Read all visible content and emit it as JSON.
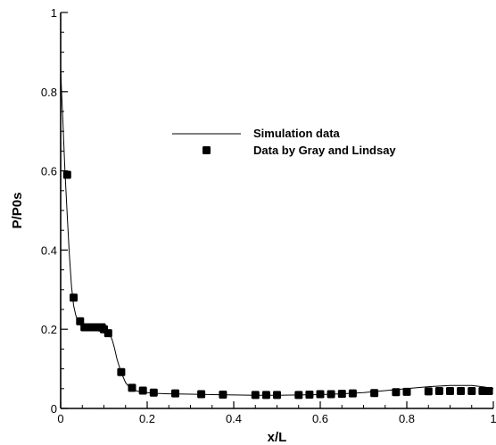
{
  "chart_data": {
    "type": "line",
    "xlabel": "x/L",
    "ylabel": "P/P0s",
    "xlim": [
      0,
      1
    ],
    "ylim": [
      0,
      1
    ],
    "x_ticks": [
      "0",
      "0.2",
      "0.4",
      "0.6",
      "0.8",
      "1"
    ],
    "y_ticks": [
      "0",
      "0.2",
      "0.4",
      "0.6",
      "0.8",
      "1"
    ],
    "grid": false,
    "legend_position": "upper-right",
    "series": [
      {
        "name": "Simulation data",
        "style": "line",
        "color": "#000000",
        "x": [
          0.0,
          0.002,
          0.005,
          0.01,
          0.015,
          0.02,
          0.025,
          0.03,
          0.035,
          0.04,
          0.045,
          0.05,
          0.06,
          0.07,
          0.08,
          0.09,
          0.1,
          0.11,
          0.115,
          0.12,
          0.125,
          0.13,
          0.14,
          0.15,
          0.16,
          0.17,
          0.18,
          0.2,
          0.22,
          0.25,
          0.3,
          0.35,
          0.4,
          0.45,
          0.5,
          0.55,
          0.6,
          0.65,
          0.7,
          0.75,
          0.8,
          0.85,
          0.9,
          0.95,
          0.98,
          1.0
        ],
        "y": [
          0.86,
          0.8,
          0.73,
          0.6,
          0.49,
          0.39,
          0.31,
          0.26,
          0.235,
          0.22,
          0.212,
          0.208,
          0.205,
          0.2,
          0.197,
          0.195,
          0.193,
          0.19,
          0.185,
          0.17,
          0.15,
          0.125,
          0.09,
          0.065,
          0.052,
          0.046,
          0.043,
          0.04,
          0.038,
          0.037,
          0.036,
          0.035,
          0.034,
          0.033,
          0.033,
          0.034,
          0.035,
          0.037,
          0.04,
          0.045,
          0.05,
          0.055,
          0.058,
          0.058,
          0.054,
          0.05
        ]
      },
      {
        "name": "Data by Gray and Lindsay",
        "style": "markers",
        "color": "#000000",
        "x": [
          0.015,
          0.03,
          0.045,
          0.055,
          0.065,
          0.075,
          0.085,
          0.095,
          0.1,
          0.11,
          0.14,
          0.165,
          0.19,
          0.215,
          0.265,
          0.325,
          0.375,
          0.45,
          0.475,
          0.5,
          0.55,
          0.575,
          0.6,
          0.625,
          0.65,
          0.675,
          0.725,
          0.775,
          0.8,
          0.85,
          0.875,
          0.9,
          0.925,
          0.95,
          0.975,
          0.99
        ],
        "y": [
          0.59,
          0.28,
          0.22,
          0.205,
          0.205,
          0.205,
          0.205,
          0.205,
          0.2,
          0.19,
          0.092,
          0.052,
          0.045,
          0.04,
          0.038,
          0.036,
          0.035,
          0.034,
          0.034,
          0.034,
          0.034,
          0.035,
          0.036,
          0.036,
          0.037,
          0.038,
          0.039,
          0.041,
          0.042,
          0.043,
          0.044,
          0.044,
          0.044,
          0.044,
          0.044,
          0.044
        ]
      }
    ]
  }
}
